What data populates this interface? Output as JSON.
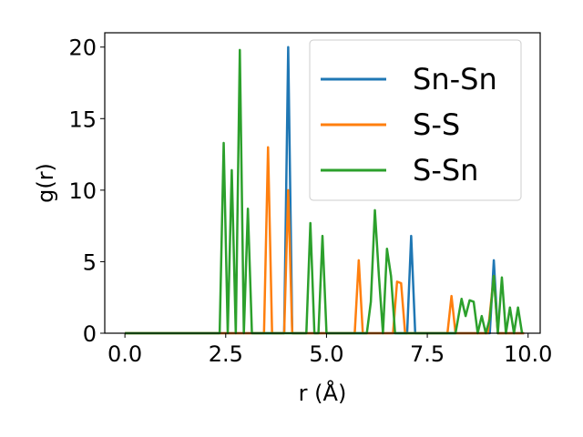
{
  "chart_data": {
    "type": "line",
    "xlabel": "r (Å)",
    "ylabel": "g(r)",
    "xlim": [
      -0.5,
      10.3
    ],
    "ylim": [
      0,
      21
    ],
    "xticks": [
      0.0,
      2.5,
      5.0,
      7.5,
      10.0
    ],
    "xtick_labels": [
      "0.0",
      "2.5",
      "5.0",
      "7.5",
      "10.0"
    ],
    "yticks": [
      0,
      5,
      10,
      15,
      20
    ],
    "ytick_labels": [
      "0",
      "5",
      "10",
      "15",
      "20"
    ],
    "grid": false,
    "legend_position": "top-right",
    "series": [
      {
        "name": "Sn-Sn",
        "color": "#1f77b4",
        "points": [
          [
            0,
            0
          ],
          [
            3.95,
            0
          ],
          [
            4.05,
            20
          ],
          [
            4.15,
            0
          ],
          [
            7.0,
            0
          ],
          [
            7.1,
            6.8
          ],
          [
            7.2,
            0
          ],
          [
            9.05,
            0
          ],
          [
            9.15,
            5.1
          ],
          [
            9.25,
            0
          ],
          [
            9.9,
            0
          ]
        ]
      },
      {
        "name": "S-S",
        "color": "#ff7f0e",
        "points": [
          [
            0,
            0
          ],
          [
            3.45,
            0
          ],
          [
            3.55,
            13
          ],
          [
            3.65,
            0
          ],
          [
            3.95,
            0
          ],
          [
            4.05,
            10
          ],
          [
            4.15,
            0
          ],
          [
            5.7,
            0
          ],
          [
            5.8,
            5.1
          ],
          [
            5.9,
            0
          ],
          [
            6.65,
            0
          ],
          [
            6.75,
            3.6
          ],
          [
            6.85,
            3.5
          ],
          [
            6.95,
            0
          ],
          [
            8.0,
            0
          ],
          [
            8.1,
            2.6
          ],
          [
            8.2,
            0
          ],
          [
            9.0,
            0
          ],
          [
            9.15,
            4.0
          ],
          [
            9.25,
            0
          ],
          [
            9.9,
            0
          ]
        ]
      },
      {
        "name": "S-Sn",
        "color": "#2ca02c",
        "points": [
          [
            0,
            0
          ],
          [
            2.35,
            0
          ],
          [
            2.45,
            13.3
          ],
          [
            2.55,
            0
          ],
          [
            2.65,
            11.4
          ],
          [
            2.75,
            0
          ],
          [
            2.85,
            19.8
          ],
          [
            2.95,
            0
          ],
          [
            3.05,
            8.7
          ],
          [
            3.15,
            0
          ],
          [
            4.5,
            0
          ],
          [
            4.6,
            7.7
          ],
          [
            4.7,
            0
          ],
          [
            4.8,
            0
          ],
          [
            4.9,
            6.8
          ],
          [
            5.0,
            0
          ],
          [
            6.0,
            0
          ],
          [
            6.1,
            2.2
          ],
          [
            6.2,
            8.6
          ],
          [
            6.3,
            4.0
          ],
          [
            6.4,
            0
          ],
          [
            6.5,
            5.9
          ],
          [
            6.6,
            4.0
          ],
          [
            6.7,
            0
          ],
          [
            8.2,
            0
          ],
          [
            8.35,
            2.4
          ],
          [
            8.45,
            1.2
          ],
          [
            8.55,
            2.3
          ],
          [
            8.65,
            2.2
          ],
          [
            8.75,
            0
          ],
          [
            8.85,
            1.2
          ],
          [
            8.95,
            0
          ],
          [
            9.05,
            1.0
          ],
          [
            9.15,
            4.0
          ],
          [
            9.25,
            0
          ],
          [
            9.35,
            3.9
          ],
          [
            9.45,
            0
          ],
          [
            9.55,
            1.8
          ],
          [
            9.65,
            0
          ],
          [
            9.75,
            1.8
          ],
          [
            9.85,
            0
          ]
        ]
      }
    ]
  }
}
